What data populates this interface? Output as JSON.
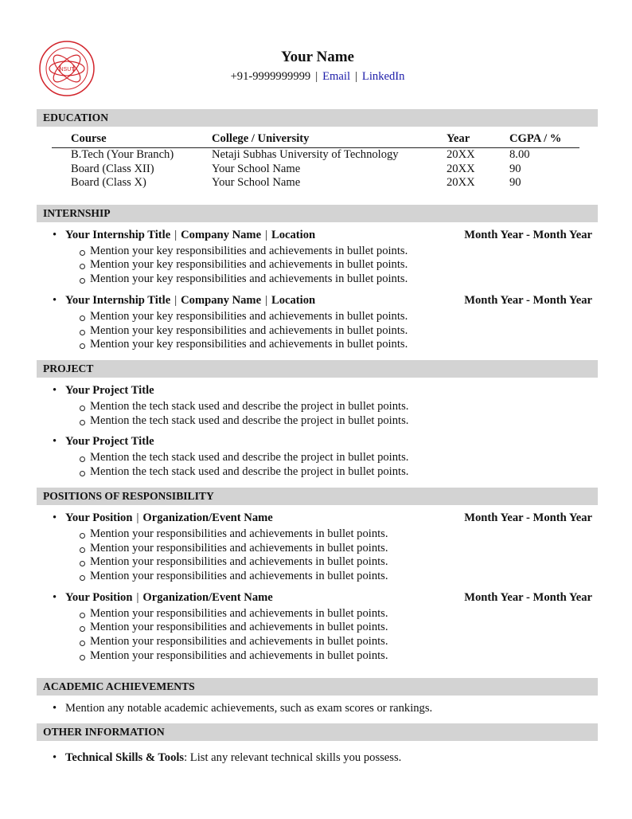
{
  "header": {
    "logo_text": "NSUT",
    "name": "Your Name",
    "phone": "+91-9999999999",
    "separator": "|",
    "email": "Email",
    "linkedin": "LinkedIn"
  },
  "education": {
    "title": "EDUCATION",
    "columns": [
      "Course",
      "College / University",
      "Year",
      "CGPA / %"
    ],
    "rows": [
      [
        "B.Tech (Your Branch)",
        "Netaji Subhas University of Technology",
        "20XX",
        "8.00"
      ],
      [
        "Board (Class XII)",
        "Your School Name",
        "20XX",
        "90"
      ],
      [
        "Board (Class X)",
        "Your School Name",
        "20XX",
        "90"
      ]
    ]
  },
  "internship": {
    "title": "INTERNSHIP",
    "items": [
      {
        "role": "Your Internship Title",
        "company": "Company Name",
        "location": "Location",
        "date": "Month Year - Month Year",
        "points": [
          "Mention your key responsibilities and achievements in bullet points.",
          "Mention your key responsibilities and achievements in bullet points.",
          "Mention your key responsibilities and achievements in bullet points."
        ]
      },
      {
        "role": "Your Internship Title",
        "company": "Company Name",
        "location": "Location",
        "date": "Month Year - Month Year",
        "points": [
          "Mention your key responsibilities and achievements in bullet points.",
          "Mention your key responsibilities and achievements in bullet points.",
          "Mention your key responsibilities and achievements in bullet points."
        ]
      }
    ]
  },
  "project": {
    "title": "PROJECT",
    "items": [
      {
        "name": "Your Project Title",
        "points": [
          "Mention the tech stack used and describe the project in bullet points.",
          "Mention the tech stack used and describe the project in bullet points."
        ]
      },
      {
        "name": "Your Project Title",
        "points": [
          "Mention the tech stack used and describe the project in bullet points.",
          "Mention the tech stack used and describe the project in bullet points."
        ]
      }
    ]
  },
  "por": {
    "title": "POSITIONS OF RESPONSIBILITY",
    "items": [
      {
        "position": "Your Position",
        "org": "Organization/Event Name",
        "date": "Month Year - Month Year",
        "points": [
          "Mention your responsibilities and achievements in bullet points.",
          "Mention your responsibilities and achievements in bullet points.",
          "Mention your responsibilities and achievements in bullet points.",
          "Mention your responsibilities and achievements in bullet points."
        ]
      },
      {
        "position": "Your Position",
        "org": "Organization/Event Name",
        "date": "Month Year - Month Year",
        "points": [
          "Mention your responsibilities and achievements in bullet points.",
          "Mention your responsibilities and achievements in bullet points.",
          "Mention your responsibilities and achievements in bullet points.",
          "Mention your responsibilities and achievements in bullet points."
        ]
      }
    ]
  },
  "academic": {
    "title": "ACADEMIC ACHIEVEMENTS",
    "items": [
      "Mention any notable academic achievements, such as exam scores or rankings."
    ]
  },
  "other": {
    "title": "OTHER INFORMATION",
    "items": [
      {
        "label": "Technical Skills & Tools",
        "text": ": List any relevant technical skills you possess."
      }
    ]
  },
  "colors": {
    "link": "#1a1aa8",
    "section_bar": "#d3d3d3",
    "logo": "#d2232a"
  }
}
